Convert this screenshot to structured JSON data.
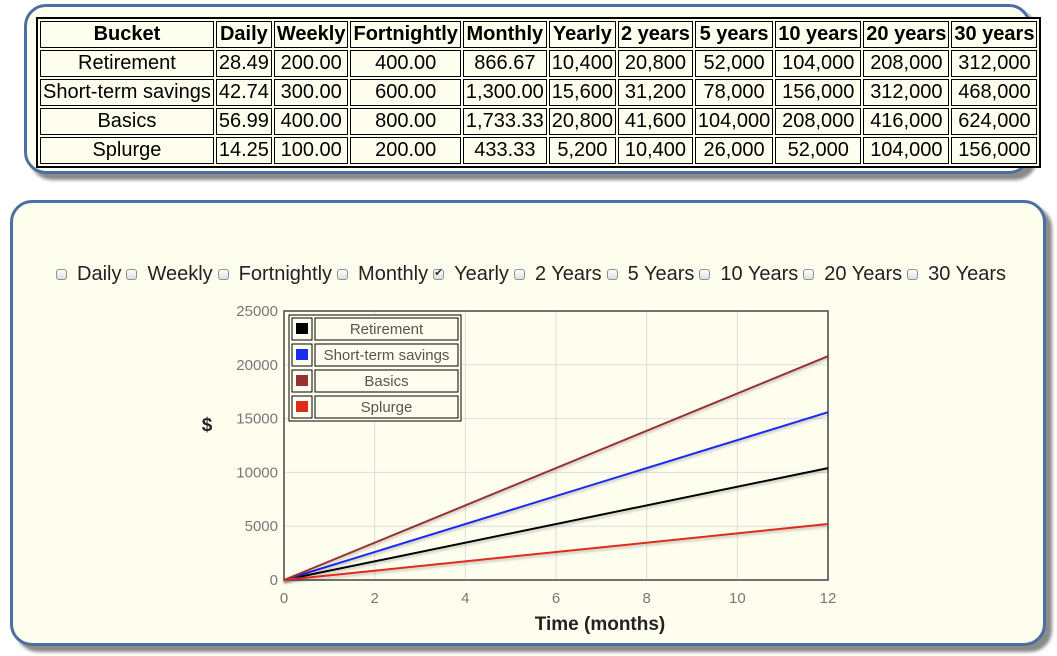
{
  "table": {
    "headers": [
      "Bucket",
      "Daily",
      "Weekly",
      "Fortnightly",
      "Monthly",
      "Yearly",
      "2 years",
      "5 years",
      "10 years",
      "20 years",
      "30 years"
    ],
    "rows": [
      [
        "Retirement",
        "28.49",
        "200.00",
        "400.00",
        "866.67",
        "10,400",
        "20,800",
        "52,000",
        "104,000",
        "208,000",
        "312,000"
      ],
      [
        "Short-term savings",
        "42.74",
        "300.00",
        "600.00",
        "1,300.00",
        "15,600",
        "31,200",
        "78,000",
        "156,000",
        "312,000",
        "468,000"
      ],
      [
        "Basics",
        "56.99",
        "400.00",
        "800.00",
        "1,733.33",
        "20,800",
        "41,600",
        "104,000",
        "208,000",
        "416,000",
        "624,000"
      ],
      [
        "Splurge",
        "14.25",
        "100.00",
        "200.00",
        "433.33",
        "5,200",
        "10,400",
        "26,000",
        "52,000",
        "104,000",
        "156,000"
      ]
    ]
  },
  "periods": [
    {
      "label": "Daily",
      "checked": false
    },
    {
      "label": "Weekly",
      "checked": false
    },
    {
      "label": "Fortnightly",
      "checked": false
    },
    {
      "label": "Monthly",
      "checked": false
    },
    {
      "label": "Yearly",
      "checked": true
    },
    {
      "label": "2 Years",
      "checked": false
    },
    {
      "label": "5 Years",
      "checked": false
    },
    {
      "label": "10 Years",
      "checked": false
    },
    {
      "label": "20 Years",
      "checked": false
    },
    {
      "label": "30 Years",
      "checked": false
    }
  ],
  "chart_data": {
    "type": "line",
    "title": "",
    "xlabel": "Time (months)",
    "ylabel": "$",
    "xlim": [
      0,
      12
    ],
    "ylim": [
      0,
      25000
    ],
    "xticks": [
      0,
      2,
      4,
      6,
      8,
      10,
      12
    ],
    "yticks": [
      0,
      5000,
      10000,
      15000,
      20000,
      25000
    ],
    "grid": true,
    "legend_position": "top-left",
    "series": [
      {
        "name": "Retirement",
        "color": "#000000",
        "x": [
          0,
          12
        ],
        "values": [
          0,
          10400
        ]
      },
      {
        "name": "Short-term savings",
        "color": "#1a2cf0",
        "x": [
          0,
          12
        ],
        "values": [
          0,
          15600
        ]
      },
      {
        "name": "Basics",
        "color": "#983232",
        "x": [
          0,
          12
        ],
        "values": [
          0,
          20800
        ]
      },
      {
        "name": "Splurge",
        "color": "#e02a1c",
        "x": [
          0,
          12
        ],
        "values": [
          0,
          5200
        ]
      }
    ]
  }
}
